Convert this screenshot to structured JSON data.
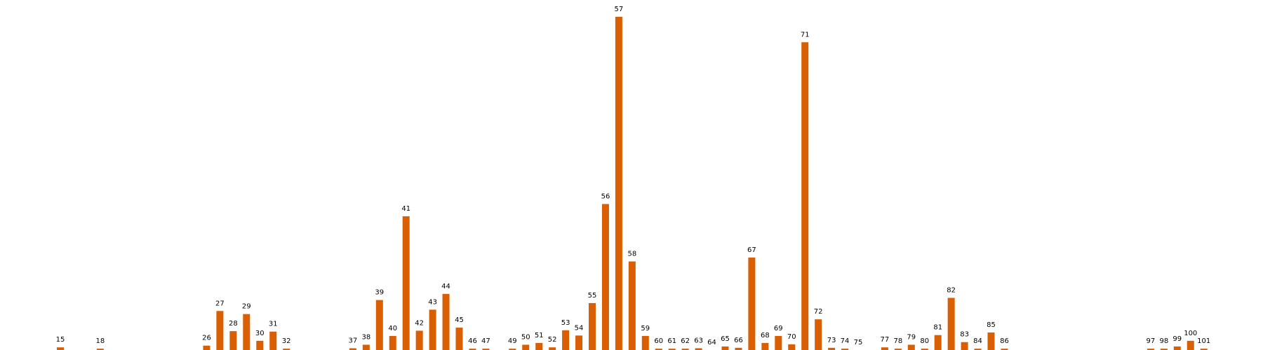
{
  "colors": {
    "bar": "#d95f02",
    "background": "#ffffff",
    "label": "#000000"
  },
  "chart_data": {
    "type": "bar",
    "title": "",
    "xlabel": "",
    "ylabel": "",
    "grid": false,
    "axes_visible": false,
    "categories": [
      "15",
      "18",
      "26",
      "27",
      "28",
      "29",
      "30",
      "31",
      "32",
      "37",
      "38",
      "39",
      "40",
      "41",
      "42",
      "43",
      "44",
      "45",
      "46",
      "47",
      "49",
      "50",
      "51",
      "52",
      "53",
      "54",
      "55",
      "56",
      "57",
      "58",
      "59",
      "60",
      "61",
      "62",
      "63",
      "64",
      "65",
      "66",
      "67",
      "68",
      "69",
      "70",
      "71",
      "72",
      "73",
      "74",
      "75",
      "77",
      "78",
      "79",
      "80",
      "81",
      "82",
      "83",
      "84",
      "85",
      "86",
      "97",
      "98",
      "99",
      "100",
      "101"
    ],
    "values": [
      0.6,
      0.3,
      1.0,
      8.9,
      4.3,
      8.2,
      2.1,
      4.2,
      0.3,
      0.4,
      1.2,
      11.4,
      3.2,
      30.5,
      4.4,
      9.2,
      12.8,
      5.1,
      0.3,
      0.3,
      0.3,
      1.2,
      1.6,
      0.6,
      4.5,
      3.3,
      10.7,
      33.3,
      76.0,
      20.2,
      3.2,
      0.3,
      0.3,
      0.3,
      0.4,
      0.0,
      0.8,
      0.5,
      21.1,
      1.6,
      3.2,
      1.3,
      70.2,
      7.0,
      0.5,
      0.3,
      0.0,
      0.6,
      0.3,
      1.2,
      0.3,
      3.4,
      11.9,
      1.8,
      0.3,
      4.0,
      0.3,
      0.3,
      0.3,
      0.8,
      2.1,
      0.3
    ],
    "ylim": [
      0,
      76
    ]
  }
}
